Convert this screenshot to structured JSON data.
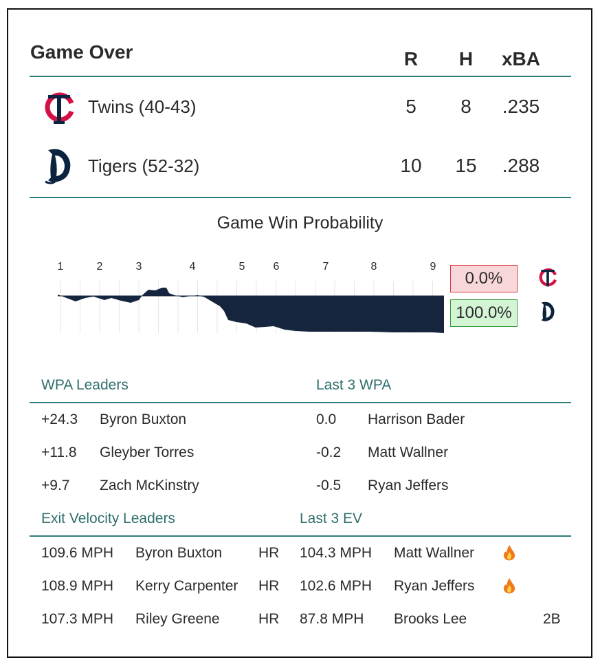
{
  "header": {
    "title": "Game Over",
    "col_runs": "R",
    "col_hits": "H",
    "col_xba": "xBA"
  },
  "teams": [
    {
      "name": "Twins (40-43)",
      "runs": "5",
      "hits": "8",
      "xba": ".235",
      "logo": "twins-tc-logo",
      "color": "#0C2341"
    },
    {
      "name": "Tigers (52-32)",
      "runs": "10",
      "hits": "15",
      "xba": ".288",
      "logo": "tigers-d-logo",
      "color": "#0C2340"
    }
  ],
  "win_probability": {
    "title": "Game Win Probability",
    "innings": [
      "1",
      "2",
      "3",
      "4",
      "5",
      "6",
      "7",
      "8",
      "9"
    ],
    "away_prob": "0.0%",
    "home_prob": "100.0%",
    "away_color": "#f8d7da",
    "home_color": "#d4f5d4",
    "fill_color": "#14253d"
  },
  "wpa_leaders": {
    "title": "WPA Leaders",
    "rows": [
      {
        "value": "+24.3",
        "name": "Byron Buxton"
      },
      {
        "value": "+11.8",
        "name": "Gleyber Torres"
      },
      {
        "value": "+9.7",
        "name": "Zach McKinstry"
      }
    ]
  },
  "last3_wpa": {
    "title": "Last 3 WPA",
    "rows": [
      {
        "value": "0.0",
        "name": "Harrison Bader"
      },
      {
        "value": "-0.2",
        "name": "Matt Wallner"
      },
      {
        "value": "-0.5",
        "name": "Ryan Jeffers"
      }
    ]
  },
  "ev_leaders": {
    "title": "Exit Velocity Leaders",
    "rows": [
      {
        "speed": "109.6 MPH",
        "name": "Byron Buxton",
        "result": "HR"
      },
      {
        "speed": "108.9 MPH",
        "name": "Kerry Carpenter",
        "result": "HR"
      },
      {
        "speed": "107.3 MPH",
        "name": "Riley Greene",
        "result": "HR"
      }
    ]
  },
  "last3_ev": {
    "title": "Last 3 EV",
    "rows": [
      {
        "speed": "104.3 MPH",
        "name": "Matt Wallner",
        "result": "",
        "icon": "fire-icon"
      },
      {
        "speed": "102.6 MPH",
        "name": "Ryan Jeffers",
        "result": "",
        "icon": "fire-icon"
      },
      {
        "speed": "87.8 MPH",
        "name": "Brooks Lee",
        "result": "2B",
        "icon": ""
      }
    ]
  }
}
